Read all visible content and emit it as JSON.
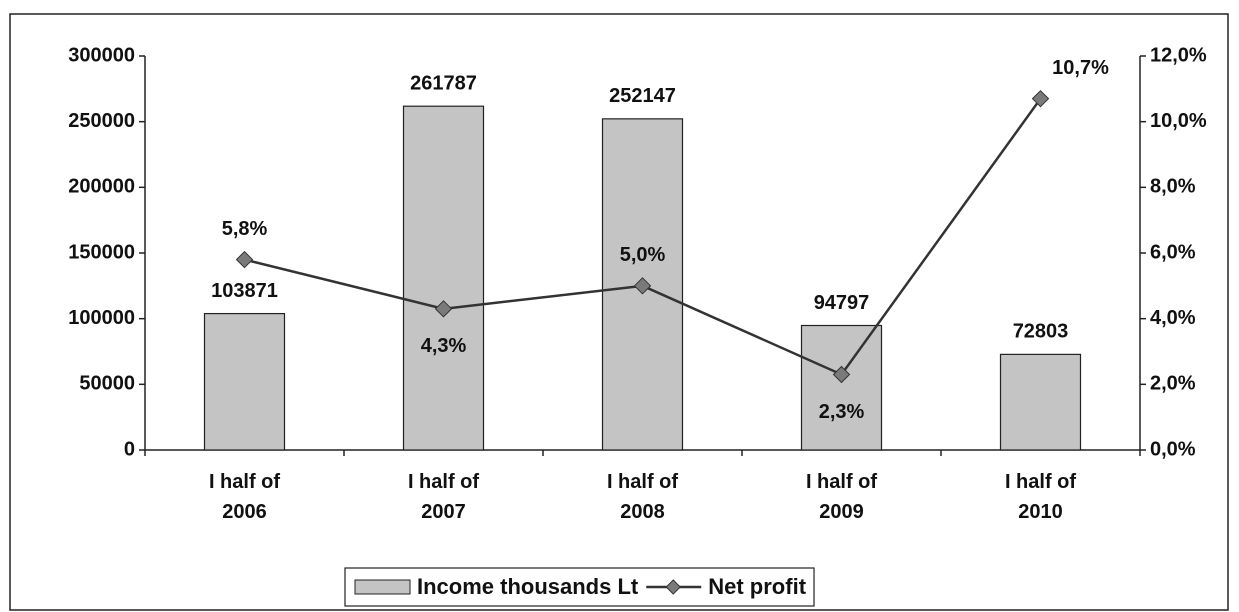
{
  "chart_data": {
    "type": "bar",
    "categories": [
      "I half of 2006",
      "I half of 2007",
      "I half of 2008",
      "I half of 2009",
      "I half of 2010"
    ],
    "series": [
      {
        "name": "Income thousands Lt",
        "type": "bar",
        "color": "#c4c4c4",
        "values": [
          103871,
          261787,
          252147,
          94797,
          72803
        ]
      },
      {
        "name": "Net profit",
        "type": "line",
        "axis": "y2",
        "color": "#333333",
        "values": [
          5.8,
          4.3,
          5.0,
          2.3,
          10.7
        ],
        "value_labels": [
          "5,8%",
          "4,3%",
          "5,0%",
          "2,3%",
          "10,7%"
        ]
      }
    ],
    "ylim": [
      0,
      300000
    ],
    "yticks": [
      0,
      50000,
      100000,
      150000,
      200000,
      250000,
      300000
    ],
    "y2lim": [
      0,
      12
    ],
    "y2ticks": [
      {
        "value": 0,
        "label": "0,0%"
      },
      {
        "value": 2,
        "label": "2,0%"
      },
      {
        "value": 4,
        "label": "4,0%"
      },
      {
        "value": 6,
        "label": "6,0%"
      },
      {
        "value": 8,
        "label": "8,0%"
      },
      {
        "value": 10,
        "label": "10,0%"
      },
      {
        "value": 12,
        "label": "12,0%"
      }
    ],
    "legend": "bottom"
  }
}
